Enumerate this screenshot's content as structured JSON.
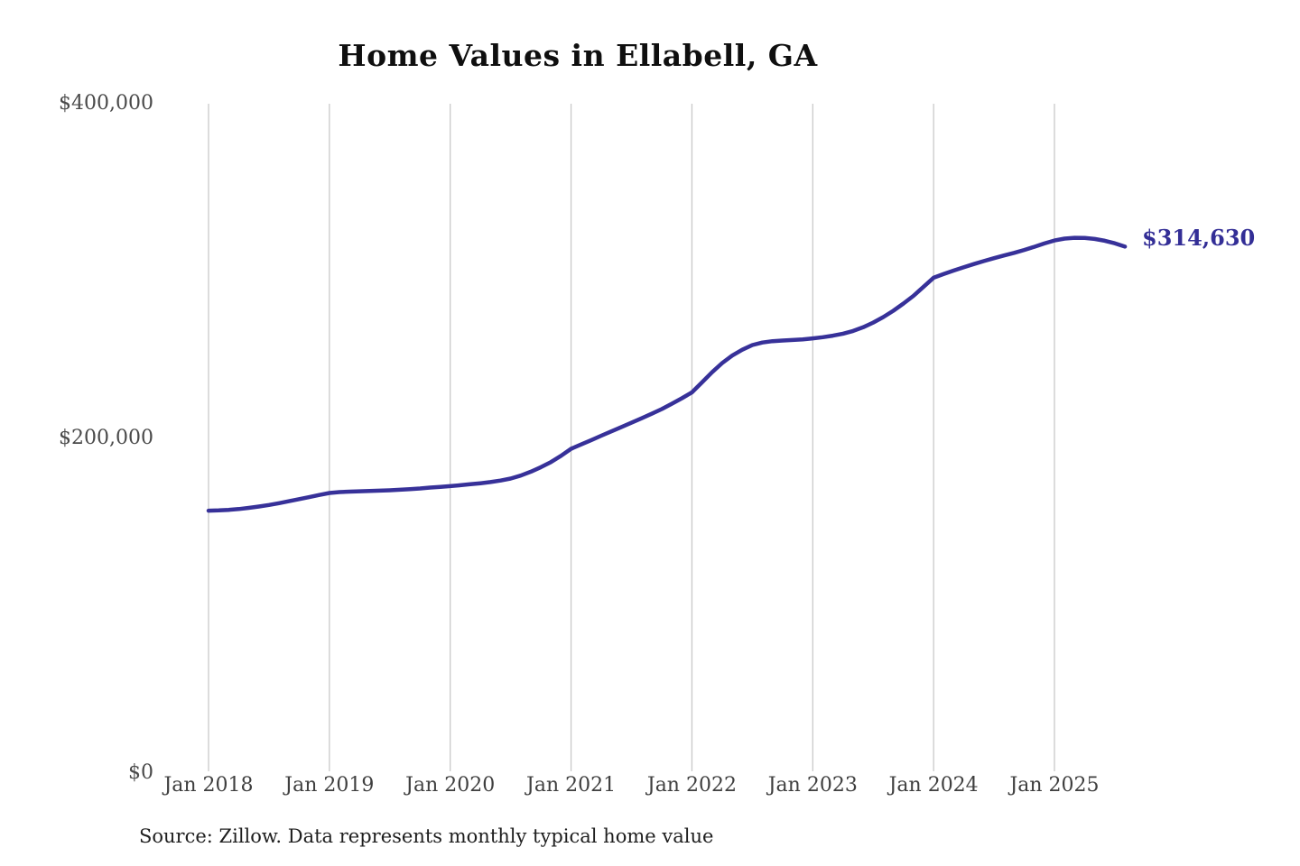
{
  "page": {
    "title": "Home Values in Ellabell, GA",
    "end_value_label": "$314,630",
    "source_note": "Source: Zillow. Data represents monthly typical home value"
  },
  "colors": {
    "line": "#373199",
    "end_label_text": "#332e96",
    "gridline": "#c9c9c9",
    "y_axis_text": "#4a4a4a",
    "x_axis_text": "#3f3f3f",
    "title_text": "#0f0f0f",
    "source_text": "#1e1e1e",
    "background": "#ffffff"
  },
  "chart_data": {
    "type": "line",
    "title": "Home Values in Ellabell, GA",
    "xlabel": "",
    "ylabel": "",
    "ylim": [
      0,
      400000
    ],
    "grid": "vertical-only",
    "legend": "none",
    "x_tick_labels": [
      "Jan 2018",
      "Jan 2019",
      "Jan 2020",
      "Jan 2021",
      "Jan 2022",
      "Jan 2023",
      "Jan 2024",
      "Jan 2025"
    ],
    "y_ticks": [
      {
        "label": "$0",
        "value": 0
      },
      {
        "label": "$200,000",
        "value": 200000
      },
      {
        "label": "$400,000",
        "value": 400000
      }
    ],
    "annotation": {
      "text": "$314,630",
      "value": 314630,
      "position": "line-end"
    },
    "source": "Source: Zillow. Data represents monthly typical home value",
    "x": [
      "2018-01",
      "2018-02",
      "2018-03",
      "2018-04",
      "2018-05",
      "2018-06",
      "2018-07",
      "2018-08",
      "2018-09",
      "2018-10",
      "2018-11",
      "2018-12",
      "2019-01",
      "2019-02",
      "2019-03",
      "2019-04",
      "2019-05",
      "2019-06",
      "2019-07",
      "2019-08",
      "2019-09",
      "2019-10",
      "2019-11",
      "2019-12",
      "2020-01",
      "2020-02",
      "2020-03",
      "2020-04",
      "2020-05",
      "2020-06",
      "2020-07",
      "2020-08",
      "2020-09",
      "2020-10",
      "2020-11",
      "2020-12",
      "2021-01",
      "2021-02",
      "2021-03",
      "2021-04",
      "2021-05",
      "2021-06",
      "2021-07",
      "2021-08",
      "2021-09",
      "2021-10",
      "2021-11",
      "2021-12",
      "2022-01",
      "2022-02",
      "2022-03",
      "2022-04",
      "2022-05",
      "2022-06",
      "2022-07",
      "2022-08",
      "2022-09",
      "2022-10",
      "2022-11",
      "2022-12",
      "2023-01",
      "2023-02",
      "2023-03",
      "2023-04",
      "2023-05",
      "2023-06",
      "2023-07",
      "2023-08",
      "2023-09",
      "2023-10",
      "2023-11",
      "2023-12",
      "2024-01",
      "2024-02",
      "2024-03",
      "2024-04",
      "2024-05",
      "2024-06",
      "2024-07",
      "2024-08",
      "2024-09",
      "2024-10",
      "2024-11",
      "2024-12",
      "2025-01",
      "2025-02",
      "2025-03",
      "2025-04",
      "2025-05",
      "2025-06",
      "2025-07",
      "2025-08"
    ],
    "series": [
      {
        "name": "Monthly typical home value",
        "values": [
          156800,
          157000,
          157300,
          157800,
          158500,
          159300,
          160200,
          161300,
          162500,
          163700,
          164900,
          166200,
          167400,
          167900,
          168200,
          168400,
          168600,
          168800,
          169000,
          169300,
          169700,
          170100,
          170600,
          171000,
          171500,
          172000,
          172600,
          173200,
          173900,
          174800,
          176000,
          177800,
          180100,
          182800,
          185900,
          189600,
          193800,
          196400,
          199000,
          201600,
          204200,
          206800,
          209400,
          212000,
          214700,
          217500,
          220700,
          224000,
          227500,
          233500,
          239500,
          245000,
          249500,
          253000,
          255800,
          257300,
          258100,
          258500,
          258800,
          259200,
          259800,
          260500,
          261400,
          262600,
          264200,
          266400,
          269200,
          272500,
          276300,
          280600,
          285200,
          290600,
          296000,
          298200,
          300300,
          302300,
          304200,
          306000,
          307700,
          309300,
          310900,
          312600,
          314500,
          316500,
          318300,
          319400,
          319900,
          319800,
          319200,
          318100,
          316600,
          314630
        ]
      }
    ]
  }
}
